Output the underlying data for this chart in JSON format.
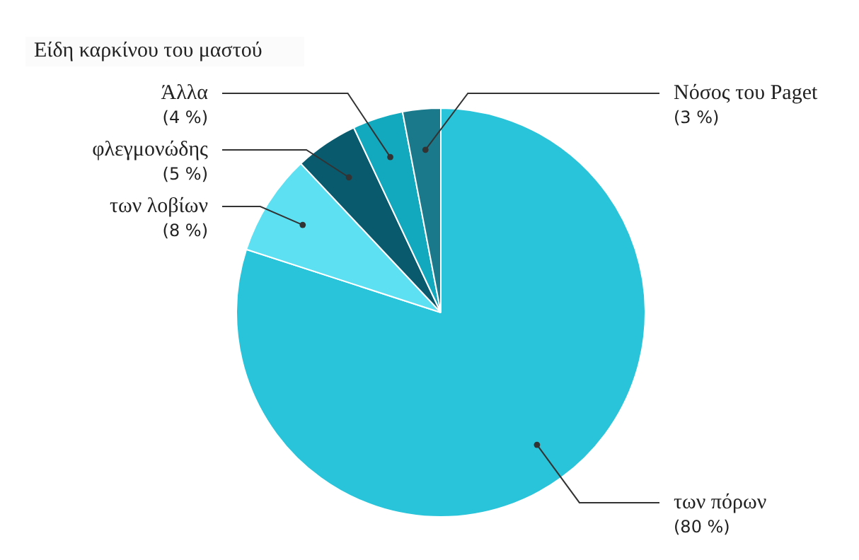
{
  "chart_data": {
    "type": "pie",
    "title": "Είδη καρκίνου του μαστού",
    "categories": [
      "των πόρων",
      "των λοβίων",
      "φλεγμονώδης",
      "Άλλα",
      "Νόσος του Paget"
    ],
    "values": [
      80,
      8,
      5,
      4,
      3
    ],
    "colors": [
      "#29c4d9",
      "#5ce0f2",
      "#0a5a6e",
      "#12a9bf",
      "#1a7a8c"
    ],
    "value_labels": [
      "(80 %)",
      "(8 %)",
      "(5 %)",
      "(4 %)",
      "(3 %)"
    ],
    "legend": false
  }
}
